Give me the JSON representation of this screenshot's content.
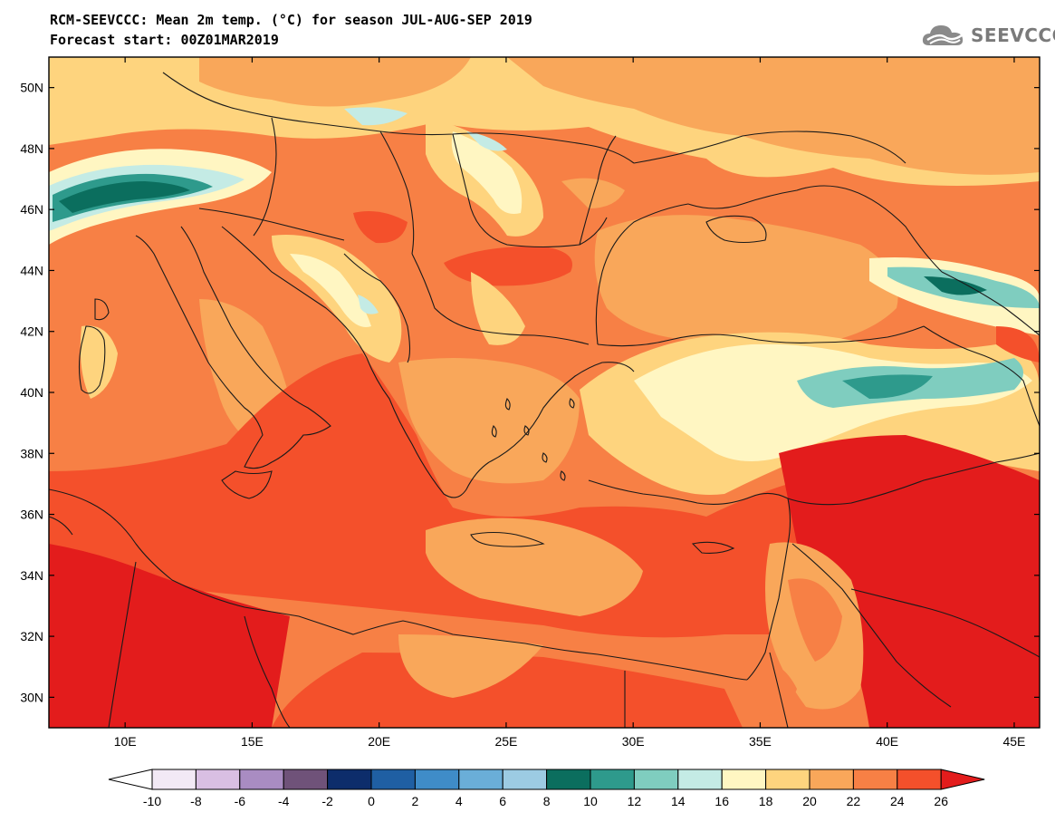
{
  "title_line1": "RCM-SEEVCCC: Mean 2m temp. (°C) for season JUL-AUG-SEP 2019",
  "title_line2": "Forecast start: 00Z01MAR2019",
  "logo": {
    "icon": "cloud-icon",
    "text": "SEEVCCC"
  },
  "map": {
    "lon_range": [
      7,
      46
    ],
    "lat_range": [
      29,
      51
    ],
    "lat_ticks": [
      "50N",
      "48N",
      "46N",
      "44N",
      "42N",
      "40N",
      "38N",
      "36N",
      "34N",
      "32N",
      "30N"
    ],
    "lon_ticks": [
      "10E",
      "15E",
      "20E",
      "25E",
      "30E",
      "35E",
      "40E",
      "45E"
    ]
  },
  "colorbar": {
    "labels": [
      "-10",
      "-8",
      "-6",
      "-4",
      "-2",
      "0",
      "2",
      "4",
      "6",
      "8",
      "10",
      "12",
      "14",
      "16",
      "18",
      "20",
      "22",
      "24",
      "26"
    ],
    "colors": [
      "#f2e9f5",
      "#d9bfe3",
      "#a98cc2",
      "#6f5279",
      "#0d2d6b",
      "#1f5fa3",
      "#3f8cc8",
      "#6aaed8",
      "#9ccbe3",
      "#0b6e5e",
      "#2e9a8c",
      "#7fcdbf",
      "#c4ebe5",
      "#fff6c2",
      "#fed47e",
      "#f9a75a",
      "#f78045",
      "#f4502b"
    ],
    "under_color": "#ffffff",
    "over_color": "#e31c1c"
  },
  "colors": {
    "t14": "#c4ebe5",
    "t16": "#fff6c2",
    "t18": "#fed47e",
    "t20": "#f9a75a",
    "t22": "#f78045",
    "t24": "#f4502b",
    "t26": "#e31c1c",
    "t10": "#0b6e5e",
    "t12": "#2e9a8c"
  }
}
